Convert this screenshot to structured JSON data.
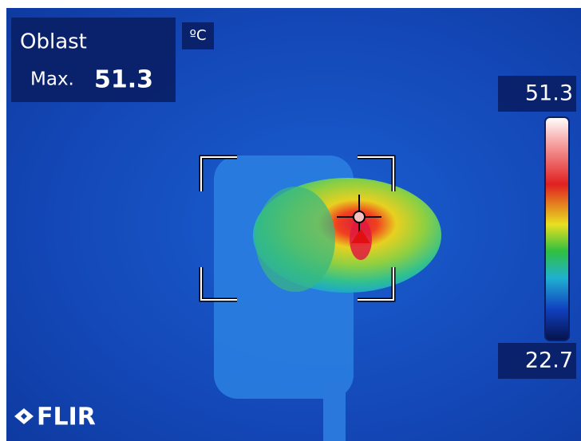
{
  "measurement": {
    "label": "Oblast",
    "max_label": "Max.",
    "max_value": 51.3,
    "unit": "ºC"
  },
  "scale": {
    "max": 51.3,
    "min": 22.7
  },
  "brand": "FLIR"
}
